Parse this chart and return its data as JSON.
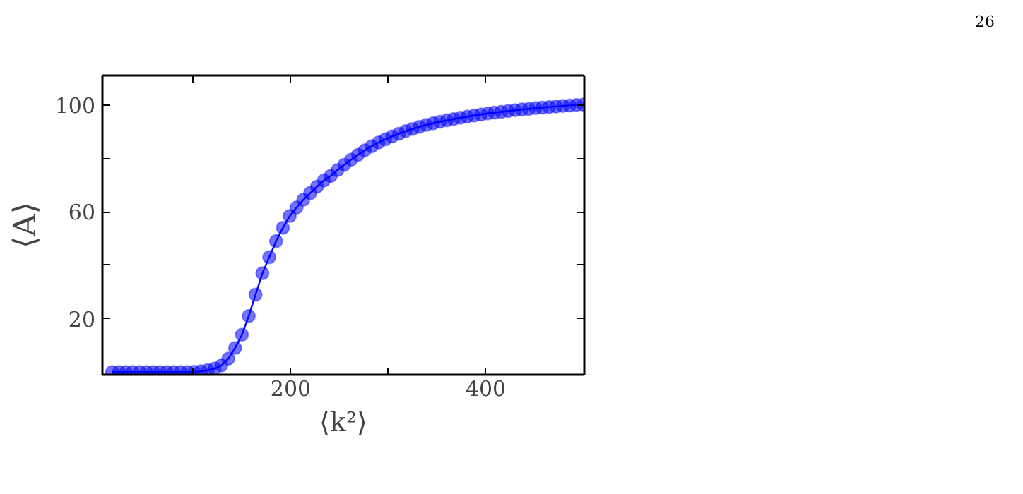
{
  "chart_data": {
    "type": "line",
    "xlabel": "⟨k²⟩",
    "ylabel": "⟨A⟩",
    "annotations": [
      "26"
    ],
    "x": [
      17,
      24,
      31,
      38,
      45,
      52,
      59,
      66,
      73,
      80,
      87,
      94,
      101,
      108,
      115,
      122,
      129,
      136,
      143,
      150,
      157,
      164,
      171,
      178,
      185,
      192,
      199,
      206,
      213,
      220,
      227,
      234,
      241,
      248,
      255,
      262,
      269,
      276,
      283,
      290,
      297,
      304,
      311,
      318,
      325,
      332,
      339,
      346,
      353,
      360,
      367,
      374,
      381,
      388,
      395,
      402,
      409,
      416,
      423,
      430,
      437,
      444,
      451,
      458,
      465,
      472,
      479,
      486,
      493,
      500
    ],
    "series": [
      {
        "color": "#0000ff",
        "values": [
          0,
          0,
          0,
          0,
          0,
          0,
          0,
          0,
          0,
          0,
          0,
          0,
          0.1,
          0.3,
          0.7,
          1.3,
          2.5,
          5,
          9,
          14,
          21,
          29,
          37,
          43,
          49,
          54,
          58.4,
          61.6,
          64.5,
          67,
          69.4,
          71.7,
          73.4,
          75.6,
          77.6,
          79.5,
          81.3,
          83,
          84.5,
          85.9,
          87.1,
          88.2,
          89.2,
          90.2,
          91,
          91.8,
          92.5,
          93.1,
          93.7,
          94.2,
          94.7,
          95.2,
          95.6,
          96,
          96.4,
          96.8,
          97.1,
          97.4,
          97.7,
          98,
          98.3,
          98.5,
          98.8,
          99,
          99.2,
          99.4,
          99.6,
          99.8,
          100,
          100.1
        ]
      }
    ],
    "xlim": [
      7,
      501
    ],
    "ylim": [
      -1,
      111
    ],
    "xticks": [
      {
        "value": 100,
        "label": null
      },
      200,
      {
        "value": 300,
        "label": null
      },
      400
    ],
    "yticks": [
      20,
      {
        "value": 40,
        "label": null
      },
      60,
      {
        "value": 80,
        "label": null
      },
      100
    ],
    "grid": false,
    "marker": "circle",
    "line_style": "solid"
  }
}
